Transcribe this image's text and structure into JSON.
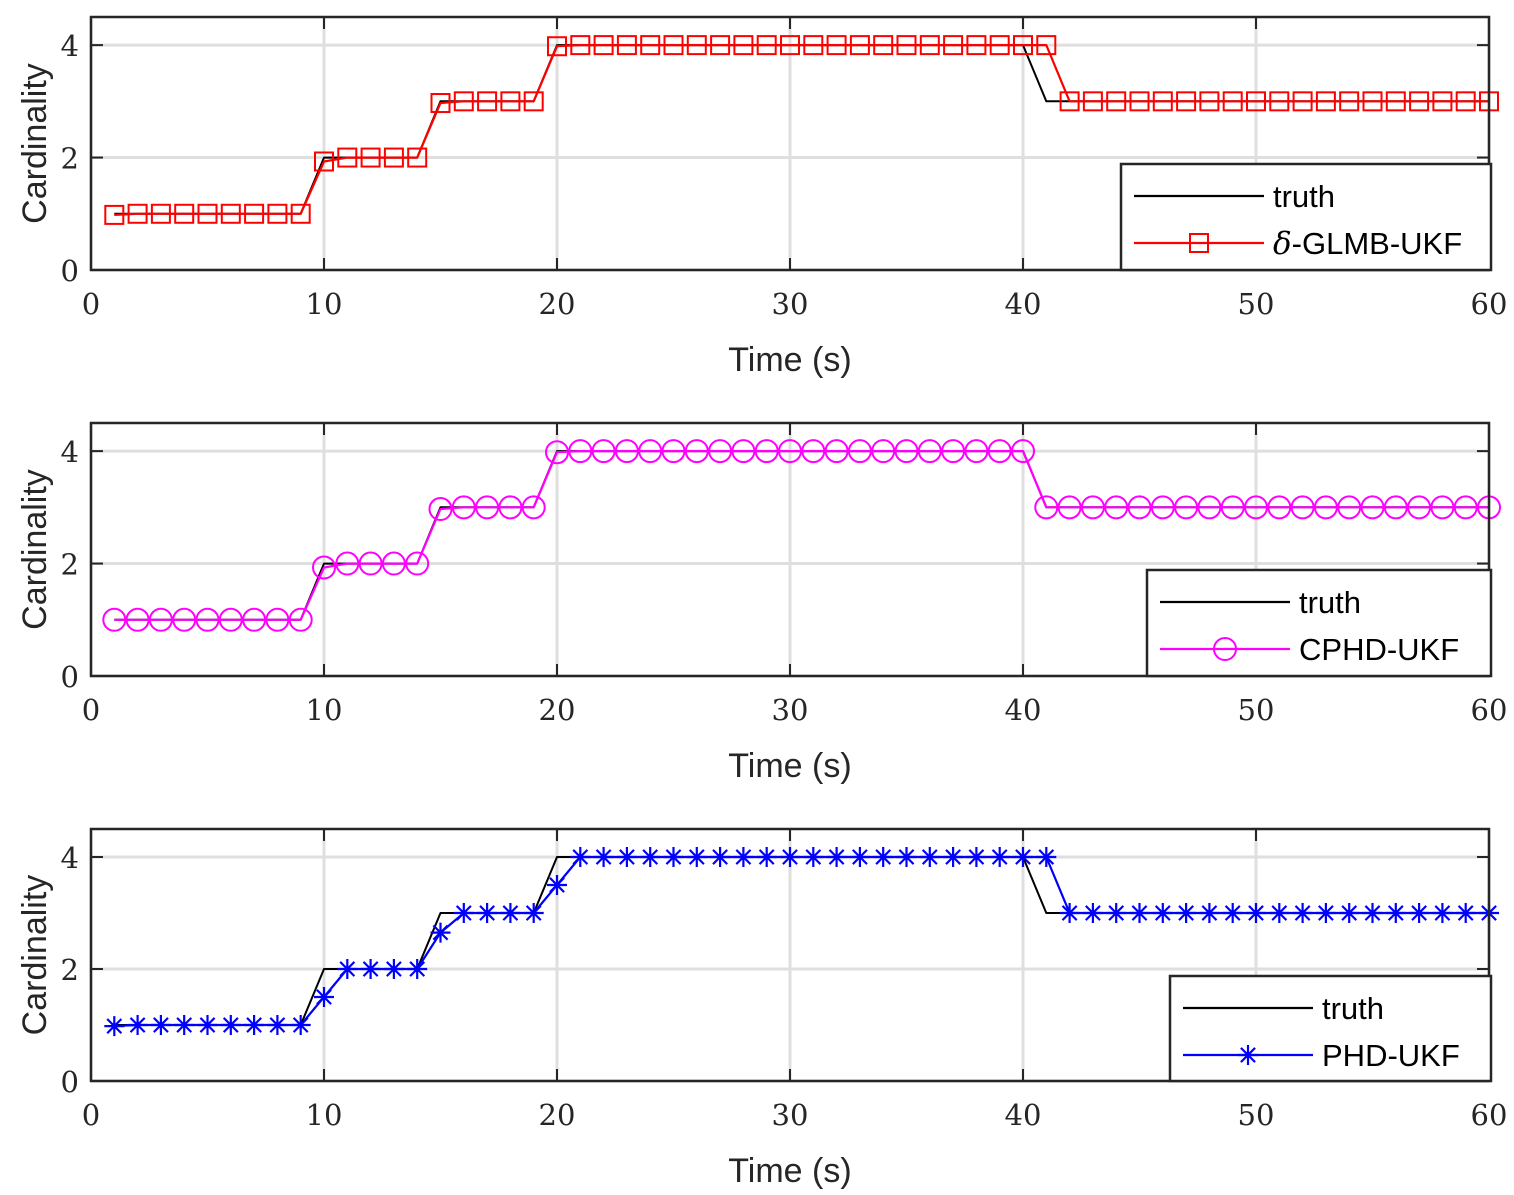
{
  "chart_data": [
    {
      "type": "line",
      "xlabel": "Time (s)",
      "ylabel": "Cardinality",
      "xlim": [
        0,
        60
      ],
      "ylim": [
        0,
        4.5
      ],
      "xticks": [
        0,
        10,
        20,
        30,
        40,
        50,
        60
      ],
      "yticks": [
        0,
        2,
        4
      ],
      "grid": true,
      "legend_position": "bottom-right",
      "series": [
        {
          "name": "truth",
          "color": "#000000",
          "marker": "none",
          "x": [
            1,
            2,
            3,
            4,
            5,
            6,
            7,
            8,
            9,
            10,
            11,
            12,
            13,
            14,
            15,
            16,
            17,
            18,
            19,
            20,
            21,
            22,
            23,
            24,
            25,
            26,
            27,
            28,
            29,
            30,
            31,
            32,
            33,
            34,
            35,
            36,
            37,
            38,
            39,
            40,
            41,
            42,
            43,
            44,
            45,
            46,
            47,
            48,
            49,
            50,
            51,
            52,
            53,
            54,
            55,
            56,
            57,
            58,
            59,
            60
          ],
          "values": [
            1,
            1,
            1,
            1,
            1,
            1,
            1,
            1,
            1,
            2,
            2,
            2,
            2,
            2,
            3,
            3,
            3,
            3,
            3,
            4,
            4,
            4,
            4,
            4,
            4,
            4,
            4,
            4,
            4,
            4,
            4,
            4,
            4,
            4,
            4,
            4,
            4,
            4,
            4,
            4,
            3,
            3,
            3,
            3,
            3,
            3,
            3,
            3,
            3,
            3,
            3,
            3,
            3,
            3,
            3,
            3,
            3,
            3,
            3,
            3
          ]
        },
        {
          "name": "δ-GLMB-UKF",
          "legend_symbol": "δ",
          "legend_rest": "-GLMB-UKF",
          "color": "#ff0000",
          "marker": "square",
          "x": [
            1,
            2,
            3,
            4,
            5,
            6,
            7,
            8,
            9,
            10,
            11,
            12,
            13,
            14,
            15,
            16,
            17,
            18,
            19,
            20,
            21,
            22,
            23,
            24,
            25,
            26,
            27,
            28,
            29,
            30,
            31,
            32,
            33,
            34,
            35,
            36,
            37,
            38,
            39,
            40,
            41,
            42,
            43,
            44,
            45,
            46,
            47,
            48,
            49,
            50,
            51,
            52,
            53,
            54,
            55,
            56,
            57,
            58,
            59,
            60
          ],
          "values": [
            0.98,
            1,
            1,
            1,
            1,
            1,
            1,
            1,
            1,
            1.93,
            2,
            2,
            2,
            2,
            2.97,
            3,
            3,
            3,
            3,
            3.98,
            4,
            4,
            4,
            4,
            4,
            4,
            4,
            4,
            4,
            4,
            4,
            4,
            4,
            4,
            4,
            4,
            4,
            4,
            4,
            4,
            4,
            3,
            3,
            3,
            3,
            3,
            3,
            3,
            3,
            3,
            3,
            3,
            3,
            3,
            3,
            3,
            3,
            3,
            3,
            3
          ]
        }
      ]
    },
    {
      "type": "line",
      "xlabel": "Time (s)",
      "ylabel": "Cardinality",
      "xlim": [
        0,
        60
      ],
      "ylim": [
        0,
        4.5
      ],
      "xticks": [
        0,
        10,
        20,
        30,
        40,
        50,
        60
      ],
      "yticks": [
        0,
        2,
        4
      ],
      "grid": true,
      "legend_position": "bottom-right",
      "series": [
        {
          "name": "truth",
          "color": "#000000",
          "marker": "none",
          "x": [
            1,
            2,
            3,
            4,
            5,
            6,
            7,
            8,
            9,
            10,
            11,
            12,
            13,
            14,
            15,
            16,
            17,
            18,
            19,
            20,
            21,
            22,
            23,
            24,
            25,
            26,
            27,
            28,
            29,
            30,
            31,
            32,
            33,
            34,
            35,
            36,
            37,
            38,
            39,
            40,
            41,
            42,
            43,
            44,
            45,
            46,
            47,
            48,
            49,
            50,
            51,
            52,
            53,
            54,
            55,
            56,
            57,
            58,
            59,
            60
          ],
          "values": [
            1,
            1,
            1,
            1,
            1,
            1,
            1,
            1,
            1,
            2,
            2,
            2,
            2,
            2,
            3,
            3,
            3,
            3,
            3,
            4,
            4,
            4,
            4,
            4,
            4,
            4,
            4,
            4,
            4,
            4,
            4,
            4,
            4,
            4,
            4,
            4,
            4,
            4,
            4,
            4,
            3,
            3,
            3,
            3,
            3,
            3,
            3,
            3,
            3,
            3,
            3,
            3,
            3,
            3,
            3,
            3,
            3,
            3,
            3,
            3
          ]
        },
        {
          "name": "CPHD-UKF",
          "color": "#ff00ff",
          "marker": "circle",
          "x": [
            1,
            2,
            3,
            4,
            5,
            6,
            7,
            8,
            9,
            10,
            11,
            12,
            13,
            14,
            15,
            16,
            17,
            18,
            19,
            20,
            21,
            22,
            23,
            24,
            25,
            26,
            27,
            28,
            29,
            30,
            31,
            32,
            33,
            34,
            35,
            36,
            37,
            38,
            39,
            40,
            41,
            42,
            43,
            44,
            45,
            46,
            47,
            48,
            49,
            50,
            51,
            52,
            53,
            54,
            55,
            56,
            57,
            58,
            59,
            60
          ],
          "values": [
            1,
            1,
            1,
            1,
            1,
            1,
            1,
            1,
            1,
            1.93,
            2,
            2,
            2,
            2,
            2.97,
            3,
            3,
            3,
            3,
            3.98,
            4,
            4,
            4,
            4,
            4,
            4,
            4,
            4,
            4,
            4,
            4,
            4,
            4,
            4,
            4,
            4,
            4,
            4,
            4,
            4,
            3,
            3,
            3,
            3,
            3,
            3,
            3,
            3,
            3,
            3,
            3,
            3,
            3,
            3,
            3,
            3,
            3,
            3,
            3,
            3
          ]
        }
      ]
    },
    {
      "type": "line",
      "xlabel": "Time (s)",
      "ylabel": "Cardinality",
      "xlim": [
        0,
        60
      ],
      "ylim": [
        0,
        4.5
      ],
      "xticks": [
        0,
        10,
        20,
        30,
        40,
        50,
        60
      ],
      "yticks": [
        0,
        2,
        4
      ],
      "grid": true,
      "legend_position": "bottom-right",
      "series": [
        {
          "name": "truth",
          "color": "#000000",
          "marker": "none",
          "x": [
            1,
            2,
            3,
            4,
            5,
            6,
            7,
            8,
            9,
            10,
            11,
            12,
            13,
            14,
            15,
            16,
            17,
            18,
            19,
            20,
            21,
            22,
            23,
            24,
            25,
            26,
            27,
            28,
            29,
            30,
            31,
            32,
            33,
            34,
            35,
            36,
            37,
            38,
            39,
            40,
            41,
            42,
            43,
            44,
            45,
            46,
            47,
            48,
            49,
            50,
            51,
            52,
            53,
            54,
            55,
            56,
            57,
            58,
            59,
            60
          ],
          "values": [
            1,
            1,
            1,
            1,
            1,
            1,
            1,
            1,
            1,
            2,
            2,
            2,
            2,
            2,
            3,
            3,
            3,
            3,
            3,
            4,
            4,
            4,
            4,
            4,
            4,
            4,
            4,
            4,
            4,
            4,
            4,
            4,
            4,
            4,
            4,
            4,
            4,
            4,
            4,
            4,
            3,
            3,
            3,
            3,
            3,
            3,
            3,
            3,
            3,
            3,
            3,
            3,
            3,
            3,
            3,
            3,
            3,
            3,
            3,
            3
          ]
        },
        {
          "name": "PHD-UKF",
          "color": "#0000ff",
          "marker": "asterisk",
          "x": [
            1,
            2,
            3,
            4,
            5,
            6,
            7,
            8,
            9,
            10,
            11,
            12,
            13,
            14,
            15,
            16,
            17,
            18,
            19,
            20,
            21,
            22,
            23,
            24,
            25,
            26,
            27,
            28,
            29,
            30,
            31,
            32,
            33,
            34,
            35,
            36,
            37,
            38,
            39,
            40,
            41,
            42,
            43,
            44,
            45,
            46,
            47,
            48,
            49,
            50,
            51,
            52,
            53,
            54,
            55,
            56,
            57,
            58,
            59,
            60
          ],
          "values": [
            0.98,
            1,
            1,
            1,
            1,
            1,
            1,
            1,
            1,
            1.5,
            2,
            2,
            2,
            2,
            2.65,
            3,
            3,
            3,
            3,
            3.5,
            4,
            4,
            4,
            4,
            4,
            4,
            4,
            4,
            4,
            4,
            4,
            4,
            4,
            4,
            4,
            4,
            4,
            4,
            4,
            4,
            4,
            3,
            3,
            3,
            3,
            3,
            3,
            3,
            3,
            3,
            3,
            3,
            3,
            3,
            3,
            3,
            3,
            3,
            3,
            3
          ]
        }
      ]
    }
  ]
}
